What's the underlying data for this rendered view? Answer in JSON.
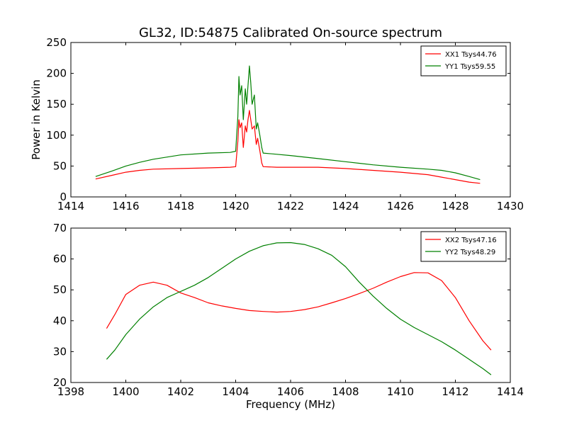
{
  "chart_data": [
    {
      "type": "line",
      "title": "GL32, ID:54875 Calibrated On-source spectrum",
      "xlabel": "",
      "ylabel": "Power in Kelvin",
      "xlim": [
        1414,
        1430
      ],
      "ylim": [
        0,
        250
      ],
      "xticks": [
        "1414",
        "1416",
        "1418",
        "1420",
        "1422",
        "1424",
        "1426",
        "1428",
        "1430"
      ],
      "yticks": [
        "0",
        "50",
        "100",
        "150",
        "200",
        "250"
      ],
      "legend_position": "top-right",
      "series": [
        {
          "name": "XX1 Tsys44.76",
          "color": "#ff0000",
          "x": [
            1414.9,
            1415.5,
            1416.0,
            1416.5,
            1417.0,
            1418.0,
            1419.0,
            1419.8,
            1420.0,
            1420.08,
            1420.12,
            1420.16,
            1420.22,
            1420.28,
            1420.35,
            1420.4,
            1420.45,
            1420.5,
            1420.55,
            1420.6,
            1420.68,
            1420.75,
            1420.8,
            1420.88,
            1420.95,
            1421.0,
            1421.5,
            1422.0,
            1423.0,
            1424.0,
            1425.0,
            1426.0,
            1427.0,
            1427.5,
            1428.0,
            1428.5,
            1428.9
          ],
          "y": [
            29,
            35,
            40,
            43,
            45,
            46,
            47,
            48,
            49,
            90,
            125,
            112,
            120,
            80,
            115,
            105,
            125,
            140,
            125,
            110,
            115,
            85,
            95,
            75,
            55,
            49,
            48,
            48,
            48,
            46,
            43,
            40,
            36,
            32,
            28,
            24,
            22
          ]
        },
        {
          "name": "YY1 Tsys59.55",
          "color": "#008000",
          "x": [
            1414.9,
            1415.5,
            1416.0,
            1416.5,
            1417.0,
            1418.0,
            1419.0,
            1419.8,
            1420.0,
            1420.08,
            1420.12,
            1420.16,
            1420.22,
            1420.28,
            1420.35,
            1420.4,
            1420.45,
            1420.5,
            1420.55,
            1420.6,
            1420.68,
            1420.75,
            1420.8,
            1420.88,
            1420.95,
            1421.0,
            1421.5,
            1422.0,
            1423.0,
            1424.0,
            1425.0,
            1426.0,
            1427.0,
            1427.5,
            1428.0,
            1428.5,
            1428.9
          ],
          "y": [
            33,
            42,
            50,
            56,
            61,
            68,
            71,
            72,
            74,
            130,
            195,
            165,
            180,
            125,
            175,
            150,
            180,
            212,
            185,
            150,
            165,
            110,
            120,
            100,
            80,
            71,
            69,
            67,
            62,
            57,
            52,
            48,
            45,
            43,
            39,
            33,
            28
          ]
        }
      ]
    },
    {
      "type": "line",
      "title": "",
      "xlabel": "Frequency (MHz)",
      "ylabel": "",
      "xlim": [
        1398,
        1414
      ],
      "ylim": [
        20,
        70
      ],
      "xticks": [
        "1398",
        "1400",
        "1402",
        "1404",
        "1406",
        "1408",
        "1410",
        "1412",
        "1414"
      ],
      "yticks": [
        "20",
        "30",
        "40",
        "50",
        "60",
        "70"
      ],
      "legend_position": "top-right",
      "series": [
        {
          "name": "XX2 Tsys47.16",
          "color": "#ff0000",
          "x": [
            1399.3,
            1399.6,
            1400.0,
            1400.5,
            1401.0,
            1401.5,
            1402.0,
            1402.5,
            1403.0,
            1403.5,
            1404.0,
            1404.5,
            1405.0,
            1405.5,
            1406.0,
            1406.5,
            1407.0,
            1407.5,
            1408.0,
            1408.5,
            1409.0,
            1409.5,
            1410.0,
            1410.5,
            1411.0,
            1411.5,
            1412.0,
            1412.5,
            1413.0,
            1413.3
          ],
          "y": [
            37.5,
            42,
            48.5,
            51.5,
            52.5,
            51.5,
            49,
            47.5,
            45.8,
            44.8,
            44,
            43.3,
            43,
            42.8,
            43,
            43.6,
            44.5,
            45.8,
            47.2,
            48.8,
            50.5,
            52.5,
            54.3,
            55.6,
            55.5,
            53,
            47.5,
            40,
            33.5,
            30.5
          ]
        },
        {
          "name": "YY2 Tsys48.29",
          "color": "#008000",
          "x": [
            1399.3,
            1399.6,
            1400.0,
            1400.5,
            1401.0,
            1401.5,
            1402.0,
            1402.5,
            1403.0,
            1403.5,
            1404.0,
            1404.5,
            1405.0,
            1405.5,
            1406.0,
            1406.5,
            1407.0,
            1407.5,
            1408.0,
            1408.5,
            1409.0,
            1409.5,
            1410.0,
            1410.5,
            1411.0,
            1411.5,
            1412.0,
            1412.5,
            1413.0,
            1413.3
          ],
          "y": [
            27.5,
            30.5,
            35.5,
            40.5,
            44.5,
            47.5,
            49.5,
            51.5,
            54,
            57,
            60,
            62.5,
            64.3,
            65.2,
            65.3,
            64.7,
            63.3,
            61.2,
            57.5,
            52.5,
            48,
            44,
            40.5,
            37.8,
            35.5,
            33.2,
            30.5,
            27.5,
            24.5,
            22.5
          ]
        }
      ]
    }
  ]
}
